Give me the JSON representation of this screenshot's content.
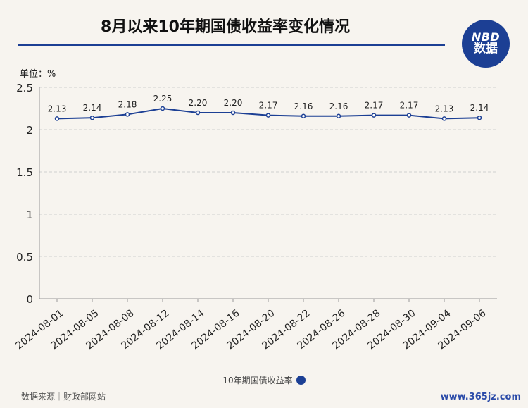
{
  "header": {
    "title": "8月以来10年期国债收益率变化情况",
    "logo_top": "NBD",
    "logo_bottom": "数据"
  },
  "unit_label": "单位：%",
  "legend_label": "10年期国债收益率",
  "source_label": "数据来源｜财政部网站",
  "site_label": "www.365jz.com",
  "colors": {
    "series": "#1c3f94",
    "grid": "#cfcfcf",
    "background": "#f7f4ef"
  },
  "chart_data": {
    "type": "line",
    "title": "8月以来10年期国债收益率变化情况",
    "x": [
      "2024-08-01",
      "2024-08-05",
      "2024-08-08",
      "2024-08-12",
      "2024-08-14",
      "2024-08-16",
      "2024-08-20",
      "2024-08-22",
      "2024-08-26",
      "2024-08-28",
      "2024-08-30",
      "2024-09-04",
      "2024-09-06"
    ],
    "series": [
      {
        "name": "10年期国债收益率",
        "values": [
          2.13,
          2.14,
          2.18,
          2.25,
          2.2,
          2.2,
          2.17,
          2.16,
          2.16,
          2.17,
          2.17,
          2.13,
          2.14
        ]
      }
    ],
    "data_labels": [
      "2.13",
      "2.14",
      "2.18",
      "2.25",
      "2.20",
      "2.20",
      "2.17",
      "2.16",
      "2.16",
      "2.17",
      "2.17",
      "2.13",
      "2.14"
    ],
    "yticks": [
      "0",
      "0.5",
      "1",
      "1.5",
      "2",
      "2.5"
    ],
    "ylim": [
      0,
      2.5
    ],
    "ylabel": "单位：%",
    "grid": true,
    "legend_position": "bottom-center"
  }
}
